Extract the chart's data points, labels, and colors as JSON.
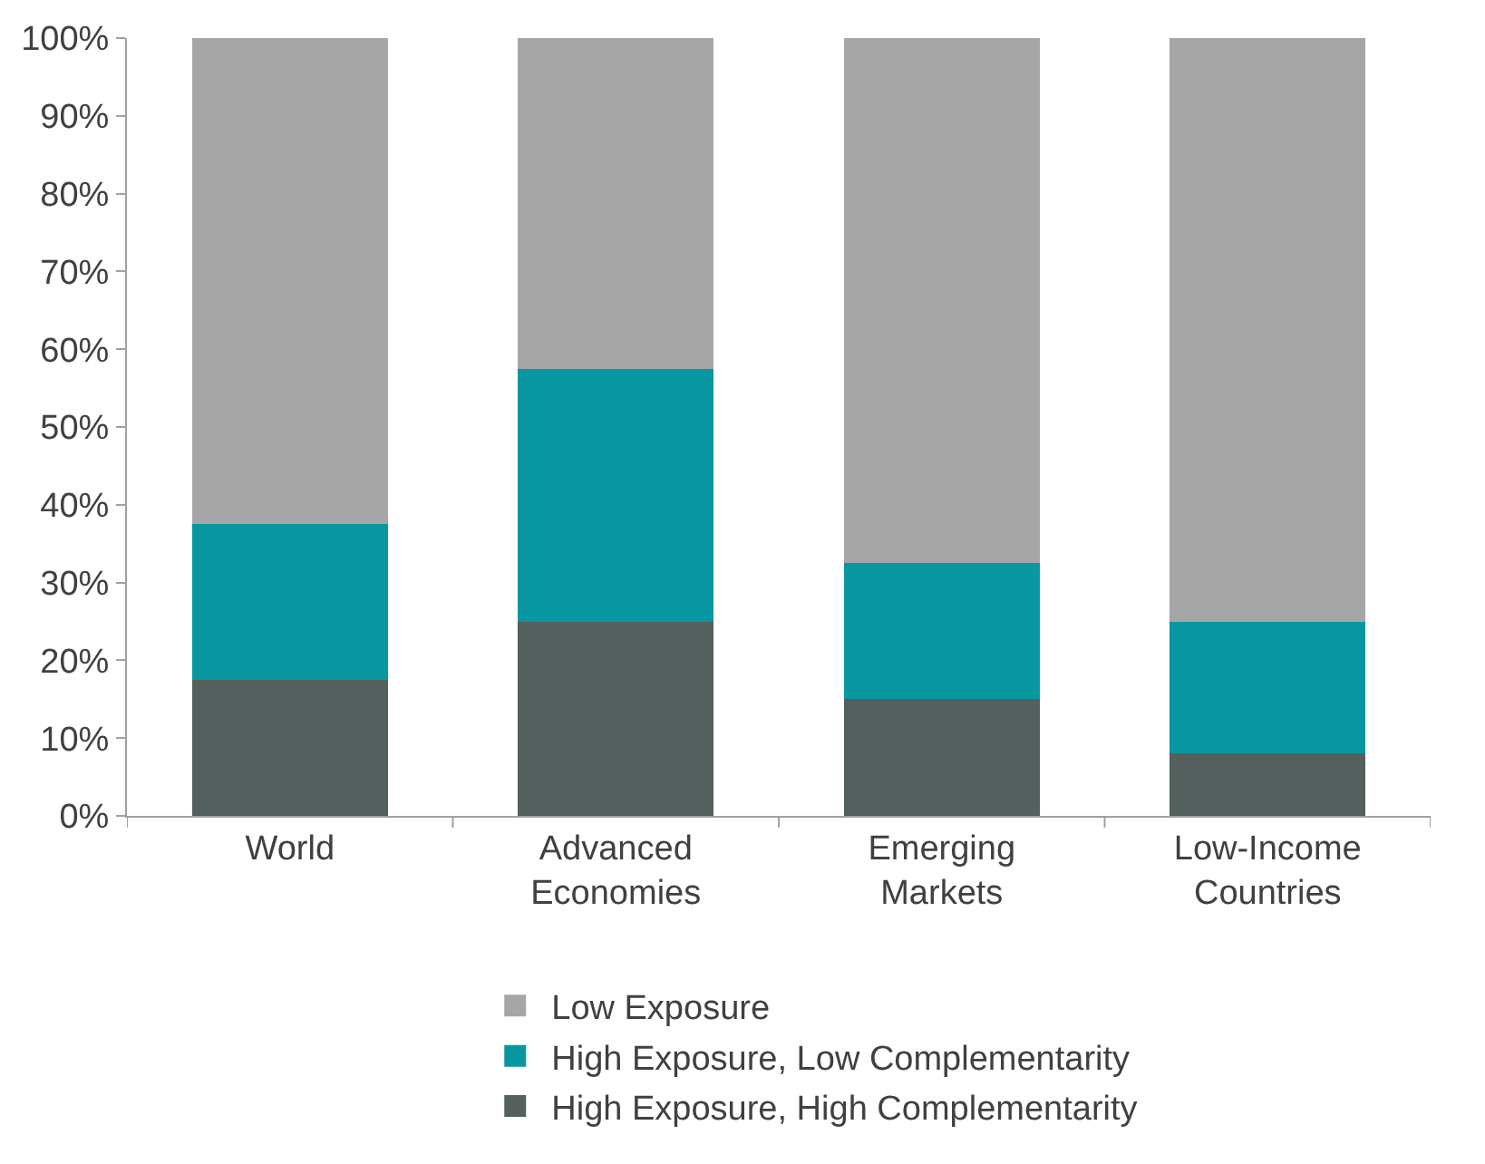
{
  "chart_data": {
    "type": "bar",
    "stacked": true,
    "categories": [
      "World",
      "Advanced\nEconomies",
      "Emerging\nMarkets",
      "Low-Income\nCountries"
    ],
    "series": [
      {
        "name": "High Exposure, High Complementarity",
        "color": "#54605e",
        "values": [
          17.5,
          25,
          15,
          8
        ]
      },
      {
        "name": "High Exposure, Low Complementarity",
        "color": "#0897a0",
        "values": [
          20,
          32.5,
          17.5,
          17
        ]
      },
      {
        "name": "Low Exposure",
        "color": "#a6a6a6",
        "values": [
          62.5,
          42.5,
          67.5,
          75
        ]
      }
    ],
    "ylim": [
      0,
      100
    ],
    "yticks": [
      {
        "value": 0,
        "label": "0%"
      },
      {
        "value": 10,
        "label": "10%"
      },
      {
        "value": 20,
        "label": "20%"
      },
      {
        "value": 30,
        "label": "30%"
      },
      {
        "value": 40,
        "label": "40%"
      },
      {
        "value": 50,
        "label": "50%"
      },
      {
        "value": 60,
        "label": "60%"
      },
      {
        "value": 70,
        "label": "70%"
      },
      {
        "value": 80,
        "label": "80%"
      },
      {
        "value": 90,
        "label": "90%"
      },
      {
        "value": 100,
        "label": "100%"
      }
    ],
    "legend": "bottom"
  }
}
